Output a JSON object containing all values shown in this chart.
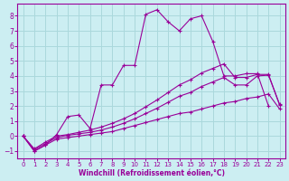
{
  "bg_color": "#cceef2",
  "grid_color": "#aad8dc",
  "line_color": "#990099",
  "xlabel": "Windchill (Refroidissement éolien,°C)",
  "xlim": [
    -0.5,
    23.5
  ],
  "ylim": [
    -1.5,
    8.8
  ],
  "yticks": [
    -1,
    0,
    1,
    2,
    3,
    4,
    5,
    6,
    7,
    8
  ],
  "xticks": [
    0,
    1,
    2,
    3,
    4,
    5,
    6,
    7,
    8,
    9,
    10,
    11,
    12,
    13,
    14,
    15,
    16,
    17,
    18,
    19,
    20,
    21,
    22,
    23
  ],
  "series": [
    {
      "x": [
        0,
        1,
        2,
        3,
        4,
        5,
        6,
        7,
        8,
        9,
        10,
        11,
        12,
        13,
        14,
        15,
        16,
        17,
        18,
        19,
        20,
        21,
        22
      ],
      "y": [
        0.0,
        -1.0,
        -0.6,
        0.1,
        1.3,
        1.4,
        0.5,
        3.4,
        3.4,
        4.7,
        4.7,
        8.1,
        8.4,
        7.6,
        7.0,
        7.8,
        8.0,
        6.3,
        4.0,
        4.0,
        4.15,
        4.15,
        2.0
      ]
    },
    {
      "x": [
        0,
        1,
        2,
        3,
        4,
        5,
        6,
        7,
        8,
        9,
        10,
        11,
        12,
        13,
        14,
        15,
        16,
        17,
        18,
        19,
        20,
        21,
        22,
        23
      ],
      "y": [
        0.0,
        -1.0,
        -0.6,
        -0.2,
        -0.1,
        0.0,
        0.1,
        0.2,
        0.3,
        0.5,
        0.7,
        0.9,
        1.1,
        1.3,
        1.5,
        1.6,
        1.8,
        2.0,
        2.2,
        2.3,
        2.5,
        2.6,
        2.8,
        1.8
      ]
    },
    {
      "x": [
        0,
        1,
        2,
        3,
        4,
        5,
        6,
        7,
        8,
        9,
        10,
        11,
        12,
        13,
        14,
        15,
        16,
        17,
        18,
        19,
        20,
        21,
        22,
        23
      ],
      "y": [
        0.0,
        -0.9,
        -0.5,
        -0.1,
        0.05,
        0.15,
        0.25,
        0.4,
        0.6,
        0.85,
        1.15,
        1.5,
        1.85,
        2.25,
        2.65,
        2.9,
        3.3,
        3.6,
        3.9,
        3.4,
        3.4,
        4.0,
        4.05,
        2.1
      ]
    },
    {
      "x": [
        0,
        1,
        2,
        3,
        4,
        5,
        6,
        7,
        8,
        9,
        10,
        11,
        12,
        13,
        14,
        15,
        16,
        17,
        18,
        19,
        20,
        21,
        22,
        23
      ],
      "y": [
        0.0,
        -0.85,
        -0.4,
        0.0,
        0.1,
        0.25,
        0.4,
        0.6,
        0.85,
        1.15,
        1.5,
        1.95,
        2.4,
        2.9,
        3.4,
        3.75,
        4.2,
        4.5,
        4.8,
        3.9,
        3.9,
        4.1,
        4.1,
        2.05
      ]
    }
  ]
}
